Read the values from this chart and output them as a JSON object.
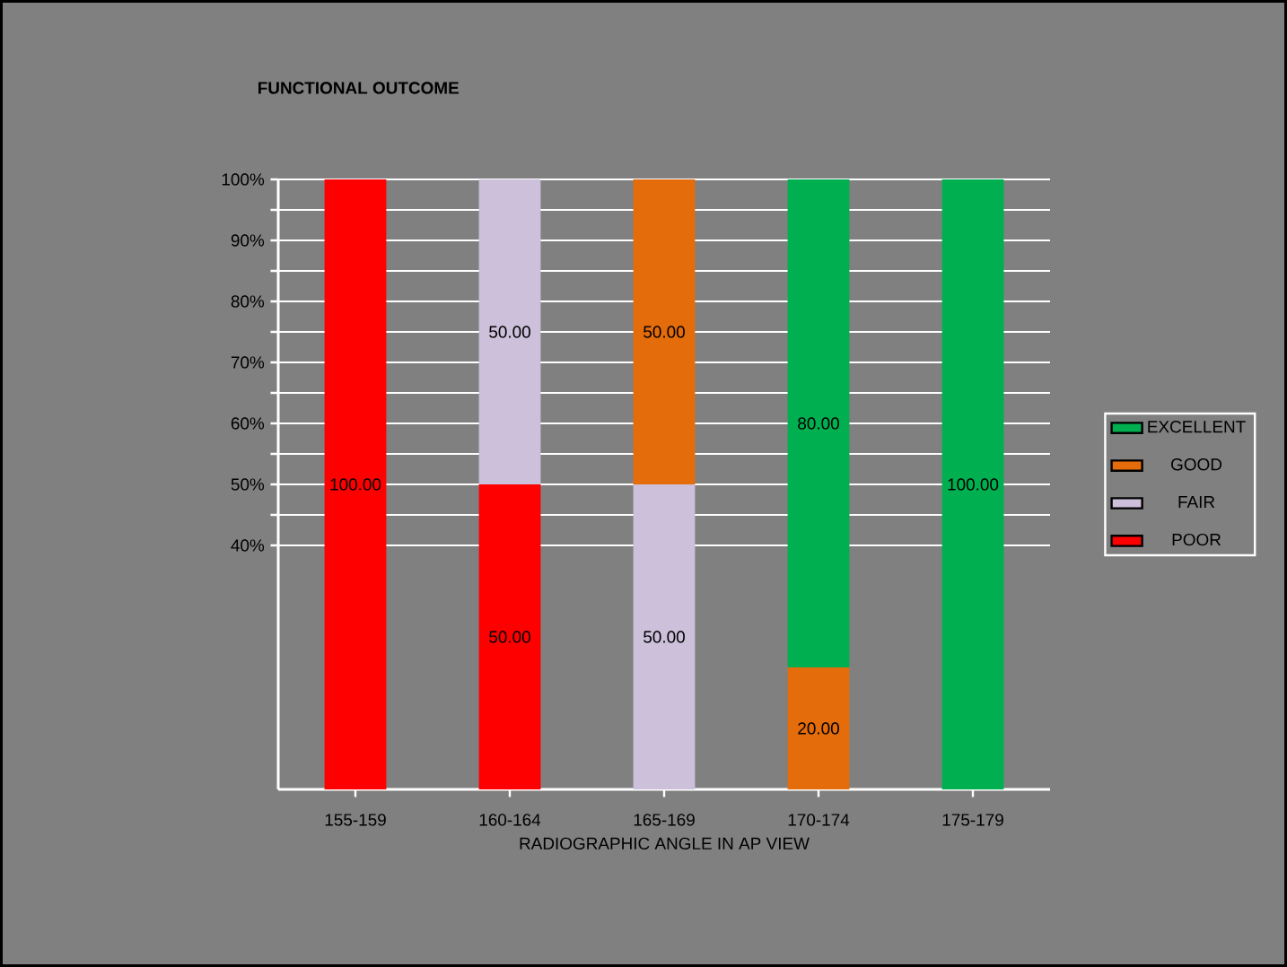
{
  "chart_data": {
    "type": "bar",
    "title": "FUNCTIONAL OUTCOME",
    "xlabel": "RADIOGRAPHIC ANGLE IN AP VIEW",
    "categories": [
      "155-159",
      "160-164",
      "165-169",
      "170-174",
      "175-179"
    ],
    "stacked": true,
    "series": [
      {
        "name": "POOR",
        "color": "#ff0000",
        "values": [
          100,
          50,
          null,
          null,
          null
        ],
        "value_labels": [
          "100.00",
          "50.00",
          null,
          null,
          null
        ]
      },
      {
        "name": "FAIR",
        "color": "#ccc0da",
        "values": [
          null,
          50,
          50,
          null,
          null
        ],
        "value_labels": [
          null,
          "50.00",
          "50.00",
          null,
          null
        ]
      },
      {
        "name": "GOOD",
        "color": "#e46c0a",
        "values": [
          null,
          null,
          50,
          20,
          null
        ],
        "value_labels": [
          null,
          null,
          "50.00",
          "20.00",
          null
        ]
      },
      {
        "name": "EXCELLENT",
        "color": "#00b050",
        "values": [
          null,
          null,
          null,
          80,
          100
        ],
        "value_labels": [
          null,
          null,
          null,
          "80.00",
          "100.00"
        ]
      }
    ],
    "ylim": [
      0,
      100
    ],
    "yticks": [
      {
        "value": 40,
        "label": "40%"
      },
      {
        "value": 45,
        "label": null
      },
      {
        "value": 50,
        "label": "50%"
      },
      {
        "value": 55,
        "label": null
      },
      {
        "value": 60,
        "label": "60%"
      },
      {
        "value": 65,
        "label": null
      },
      {
        "value": 70,
        "label": "70%"
      },
      {
        "value": 75,
        "label": null
      },
      {
        "value": 80,
        "label": "80%"
      },
      {
        "value": 85,
        "label": null
      },
      {
        "value": 90,
        "label": "90%"
      },
      {
        "value": 95,
        "label": null
      },
      {
        "value": 100,
        "label": "100%"
      }
    ],
    "grid": "y",
    "legend": "right"
  }
}
